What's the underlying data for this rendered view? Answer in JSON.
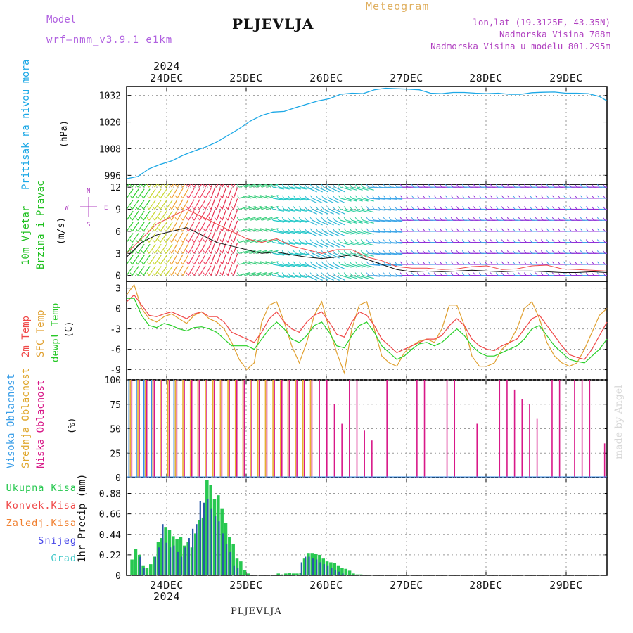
{
  "header": {
    "model_label": "Model",
    "model_name": "wrf—nmm_v3.9.1  e1km",
    "station": "PLJEVLJA",
    "meteogram_label": "Meteogram",
    "info_lines": [
      "lon,lat (19.3125E, 43.35N)",
      "Nadmorska Visina 788m",
      "Nadmorska Visina u modelu 801.295m"
    ]
  },
  "footer": {
    "station": "PLJEVLJA",
    "credit": "made by Angel"
  },
  "colors": {
    "pressure": "#1ca8e6",
    "temp2m": "#f04848",
    "sfc": "#e0a030",
    "dewpt": "#28d028",
    "wind_label": "#20c020",
    "high_cloud": "#3a8ee8",
    "mid_cloud": "#e8b030",
    "low_cloud": "#d81888",
    "precip_total": "#28c850",
    "precip_conv": "#f04848",
    "precip_frz": "#f08030",
    "snow": "#4848e8",
    "hail": "#40c8c8"
  },
  "axis": {
    "top_year": "2024",
    "bottom_year": "2024",
    "days": [
      "24DEC",
      "25DEC",
      "26DEC",
      "27DEC",
      "28DEC",
      "29DEC"
    ]
  },
  "panels": {
    "pressure": {
      "title": "Pritisak na nivou mora",
      "unit": "(hPa)",
      "ticks": [
        "996",
        "1008",
        "1020",
        "1032"
      ]
    },
    "wind": {
      "title1": "10m Vjetar",
      "title2": "Brzina i Pravac",
      "unit": "(m/s)",
      "ticks": [
        "0",
        "3",
        "6",
        "9",
        "12"
      ],
      "compass": {
        "w": "W",
        "e": "E",
        "n": "N",
        "s": "S"
      }
    },
    "temp": {
      "label1": "2m Temp",
      "label2": "SFC Temp",
      "label3": "dewpt Temp",
      "unit": "(C)",
      "ticks": [
        "-9",
        "-6",
        "-3",
        "0",
        "3"
      ]
    },
    "cloud": {
      "label1": "Visoka Oblacnost",
      "label2": "Srednja Oblacnost",
      "label3": "Niska Oblacnost",
      "unit": "(%)",
      "ticks": [
        "0",
        "25",
        "50",
        "75",
        "100"
      ]
    },
    "precip": {
      "unit": "1hr Precip (mm)",
      "ticks": [
        "0",
        "0.22",
        "0.44",
        "0.66",
        "0.88"
      ],
      "legend": [
        "Ukupna Kisa",
        "Konvek.Kisa",
        "Zaledj.Kisa",
        "Snijeg",
        "Grad"
      ]
    }
  },
  "chart_data": [
    {
      "type": "line",
      "title": "Pritisak na nivou mora",
      "ylabel": "(hPa)",
      "ylim": [
        992,
        1036
      ],
      "x_hours": [
        0,
        3,
        6,
        9,
        12,
        15,
        18,
        21,
        24,
        27,
        30,
        33,
        36,
        39,
        42,
        45,
        48,
        51,
        54,
        57,
        60,
        63,
        66,
        69,
        72,
        75,
        78,
        81,
        84,
        87,
        90,
        93,
        96,
        99,
        102,
        105,
        108,
        111,
        114,
        117,
        120,
        123,
        126,
        128
      ],
      "series": [
        {
          "values": [
            994.5,
            995.5,
            999,
            1001,
            1002.5,
            1005,
            1007,
            1008.7,
            1011,
            1014,
            1017,
            1020.5,
            1023,
            1024.5,
            1024.8,
            1026.5,
            1028,
            1029.5,
            1030.5,
            1032.5,
            1033,
            1032.8,
            1034.5,
            1035.2,
            1035,
            1034.8,
            1034.5,
            1033,
            1032.8,
            1033.3,
            1033.3,
            1033,
            1032.8,
            1033,
            1032.5,
            1032.5,
            1033.2,
            1033.4,
            1033.5,
            1033,
            1033,
            1032.8,
            1031.5,
            1029.5
          ]
        }
      ]
    },
    {
      "type": "line",
      "title": "10m Vjetar Brzina i Pravac",
      "ylabel": "(m/s)",
      "ylim": [
        -0.8,
        12.4
      ],
      "x_hours": [
        0,
        4,
        8,
        12,
        16,
        20,
        24,
        28,
        32,
        36,
        40,
        44,
        48,
        52,
        56,
        60,
        64,
        68,
        72,
        76,
        80,
        84,
        88,
        92,
        96,
        100,
        104,
        108,
        112,
        116,
        120,
        124,
        128
      ],
      "series": [
        {
          "name": "speed",
          "values": [
            2.5,
            4.5,
            5.5,
            6,
            6.5,
            5.5,
            4.5,
            4,
            3.5,
            3,
            3.2,
            2.8,
            2.5,
            2.3,
            2.5,
            2.8,
            2.2,
            1.5,
            0.8,
            0.5,
            0.6,
            0.5,
            0.6,
            0.7,
            0.6,
            0.5,
            0.6,
            0.6,
            0.5,
            0.4,
            0.4,
            0.5,
            0.4
          ]
        },
        {
          "name": "gust",
          "values": [
            3,
            5,
            7,
            8,
            9,
            8,
            7,
            6,
            5,
            4.5,
            5,
            4,
            3.5,
            3,
            3.5,
            3.5,
            2.5,
            2,
            1.2,
            1,
            1,
            0.8,
            0.9,
            1.2,
            1.3,
            0.8,
            0.9,
            1.3,
            1.4,
            0.9,
            0.8,
            0.7,
            0.6
          ]
        }
      ]
    },
    {
      "type": "line",
      "title": "Temp",
      "ylabel": "(C)",
      "ylim": [
        -10.5,
        4
      ],
      "x_hours": [
        0,
        2,
        4,
        6,
        8,
        10,
        12,
        14,
        16,
        18,
        20,
        22,
        24,
        26,
        28,
        30,
        32,
        34,
        36,
        38,
        40,
        42,
        44,
        46,
        48,
        50,
        52,
        54,
        56,
        58,
        60,
        62,
        64,
        66,
        68,
        70,
        72,
        74,
        76,
        78,
        80,
        82,
        84,
        86,
        88,
        90,
        92,
        94,
        96,
        98,
        100,
        102,
        104,
        106,
        108,
        110,
        112,
        114,
        116,
        118,
        120,
        122,
        124,
        126,
        128
      ],
      "series": [
        {
          "name": "2m Temp",
          "values": [
            1,
            2,
            0.5,
            -1,
            -1.2,
            -0.8,
            -0.5,
            -1,
            -1.5,
            -0.8,
            -0.5,
            -1.2,
            -1.2,
            -2,
            -3.5,
            -4,
            -4.5,
            -5,
            -3.5,
            -1.5,
            -0.5,
            -2,
            -3,
            -3.5,
            -2,
            -1,
            -0.5,
            -2,
            -3.8,
            -4.2,
            -2,
            -0.5,
            -1,
            -2.5,
            -4.5,
            -5.5,
            -6.5,
            -6,
            -5.5,
            -5,
            -4.5,
            -4.5,
            -4,
            -2.5,
            -1.5,
            -2.5,
            -4.5,
            -5.5,
            -6,
            -6.2,
            -5.5,
            -5,
            -4.5,
            -3,
            -1.5,
            -1,
            -2.5,
            -4,
            -5.5,
            -6.8,
            -7.2,
            -7.5,
            -6,
            -4,
            -2
          ]
        },
        {
          "name": "SFC Temp",
          "values": [
            2,
            3.5,
            0,
            -1.5,
            -2,
            -1.2,
            -0.8,
            -1.5,
            -2.2,
            -1,
            -0.5,
            -1.5,
            -2,
            -3,
            -5,
            -7.5,
            -9,
            -8,
            -2,
            0.5,
            1,
            -2,
            -5.5,
            -8,
            -5,
            -1,
            1,
            -3,
            -6.5,
            -9.5,
            -3,
            0.5,
            1,
            -3,
            -7,
            -8,
            -8.5,
            -6.5,
            -5.5,
            -4.8,
            -4.5,
            -5,
            -3,
            0.5,
            0.5,
            -2.5,
            -7,
            -8.5,
            -8.5,
            -8,
            -6,
            -5,
            -3,
            0,
            1,
            -1.5,
            -5,
            -7,
            -8,
            -8.5,
            -8,
            -6,
            -3.5,
            -1,
            0
          ]
        },
        {
          "name": "dewpt Temp",
          "values": [
            1.5,
            1.5,
            -1,
            -2.5,
            -2.8,
            -2.2,
            -2.5,
            -3,
            -3.3,
            -2.8,
            -2.7,
            -3,
            -3.5,
            -4.5,
            -5.5,
            -5.5,
            -5.5,
            -6,
            -4.5,
            -3,
            -2,
            -3,
            -4.5,
            -5,
            -4,
            -2.5,
            -2,
            -3.5,
            -5.5,
            -5.8,
            -4,
            -2.5,
            -2,
            -3.5,
            -5.5,
            -6.5,
            -7.5,
            -7,
            -6,
            -5.2,
            -5,
            -5.5,
            -5,
            -4,
            -3,
            -4,
            -5.5,
            -6.5,
            -7,
            -7,
            -6.5,
            -6,
            -5.5,
            -4.5,
            -3,
            -2.5,
            -4,
            -5.5,
            -6.5,
            -7.5,
            -7.8,
            -8,
            -7,
            -6,
            -4.5
          ]
        }
      ]
    },
    {
      "type": "bar",
      "title": "Oblacnost",
      "ylabel": "(%)",
      "ylim": [
        0,
        100
      ],
      "x_hours": [
        1,
        3,
        5,
        7,
        9,
        11,
        13,
        15,
        17,
        19,
        21,
        23,
        25,
        27,
        29,
        31,
        33,
        35,
        37,
        39,
        41,
        43,
        45,
        47,
        49,
        51,
        53,
        55,
        57,
        59,
        61,
        63,
        65,
        67,
        69,
        71,
        73,
        75,
        77,
        79,
        81,
        83,
        85,
        87,
        89,
        91,
        93,
        95,
        97,
        99,
        101,
        103,
        105,
        107,
        109,
        111,
        113,
        115,
        117,
        119,
        121,
        123,
        125,
        127
      ],
      "series": [
        {
          "name": "Visoka Oblacnost",
          "values": [
            100,
            100,
            100,
            100,
            0,
            0,
            100,
            0,
            0,
            0,
            0,
            0,
            0,
            0,
            0,
            0,
            0,
            0,
            0,
            0,
            0,
            0,
            0,
            0,
            0,
            0,
            0,
            0,
            0,
            0,
            0,
            0,
            0,
            0,
            0,
            0,
            0,
            0,
            0,
            0,
            0,
            0,
            0,
            0,
            0,
            0,
            0,
            0,
            0,
            0,
            0,
            0,
            0,
            0,
            0,
            0,
            0,
            0,
            0,
            0,
            0,
            0,
            0,
            0
          ]
        },
        {
          "name": "Srednja Oblacnost",
          "values": [
            100,
            100,
            100,
            100,
            100,
            100,
            100,
            100,
            100,
            100,
            100,
            100,
            100,
            100,
            100,
            100,
            100,
            100,
            100,
            100,
            100,
            100,
            100,
            100,
            100,
            0,
            0,
            0,
            0,
            0,
            0,
            0,
            0,
            0,
            0,
            0,
            0,
            0,
            0,
            0,
            0,
            0,
            0,
            0,
            0,
            0,
            0,
            0,
            0,
            0,
            0,
            0,
            0,
            0,
            0,
            0,
            0,
            0,
            0,
            0,
            0,
            0,
            0,
            0
          ]
        },
        {
          "name": "Niska Oblacnost",
          "values": [
            100,
            100,
            100,
            100,
            100,
            100,
            100,
            100,
            100,
            100,
            100,
            100,
            100,
            100,
            100,
            100,
            100,
            100,
            100,
            100,
            100,
            100,
            100,
            100,
            100,
            100,
            100,
            75,
            55,
            100,
            100,
            48,
            38,
            0,
            100,
            0,
            0,
            0,
            100,
            100,
            0,
            0,
            100,
            100,
            0,
            0,
            55,
            0,
            0,
            100,
            100,
            90,
            80,
            75,
            60,
            0,
            100,
            100,
            0,
            100,
            100,
            100,
            0,
            35
          ]
        }
      ]
    },
    {
      "type": "bar",
      "title": "1hr Precip",
      "ylabel": "1hr Precip (mm)",
      "ylim": [
        0,
        1.05
      ],
      "x_hours": [
        0,
        1,
        2,
        3,
        4,
        5,
        6,
        7,
        8,
        9,
        10,
        11,
        12,
        13,
        14,
        15,
        16,
        17,
        18,
        19,
        20,
        21,
        22,
        23,
        24,
        25,
        26,
        27,
        28,
        29,
        30,
        31,
        32,
        33,
        34,
        35,
        36,
        37,
        38,
        39,
        40,
        41,
        42,
        43,
        44,
        45,
        46,
        47,
        48,
        49,
        50,
        51,
        52,
        53,
        54,
        55,
        56,
        57,
        58,
        59,
        60,
        61,
        62,
        63,
        64,
        65,
        66,
        67,
        68,
        69,
        70,
        71,
        72
      ],
      "series": [
        {
          "name": "Ukupna Kisa",
          "values": [
            0,
            0.17,
            0.28,
            0.22,
            0.1,
            0.08,
            0.12,
            0.2,
            0.36,
            0.4,
            0.52,
            0.49,
            0.42,
            0.39,
            0.41,
            0.32,
            0.36,
            0.3,
            0.45,
            0.59,
            0.62,
            1.02,
            0.97,
            0.82,
            0.86,
            0.72,
            0.56,
            0.41,
            0.34,
            0.18,
            0.15,
            0.06,
            0.02,
            0,
            0,
            0,
            0,
            0,
            0,
            0,
            0.02,
            0.01,
            0.02,
            0.03,
            0.02,
            0.02,
            0.03,
            0.18,
            0.24,
            0.24,
            0.23,
            0.22,
            0.18,
            0.15,
            0.14,
            0.13,
            0.1,
            0.08,
            0.07,
            0.05,
            0.02,
            0.01,
            0.01,
            0,
            0,
            0,
            0,
            0,
            0,
            0,
            0,
            0,
            0
          ]
        },
        {
          "name": "Snijeg",
          "values": [
            0,
            0,
            0,
            0.2,
            0.08,
            0,
            0,
            0.2,
            0.3,
            0.55,
            0.35,
            0.3,
            0.32,
            0.25,
            0.2,
            0.3,
            0.4,
            0.5,
            0.55,
            0.8,
            0.78,
            0.82,
            0.72,
            0.64,
            0.58,
            0.45,
            0.34,
            0.25,
            0.1,
            0.08,
            0,
            0,
            0,
            0,
            0,
            0,
            0,
            0,
            0,
            0,
            0,
            0,
            0,
            0,
            0,
            0,
            0.14,
            0.2,
            0.2,
            0.18,
            0.17,
            0.14,
            0.12,
            0.1,
            0.08,
            0.06,
            0.04,
            0.02,
            0,
            0,
            0,
            0,
            0,
            0,
            0,
            0,
            0,
            0,
            0,
            0,
            0,
            0,
            0
          ]
        }
      ]
    }
  ]
}
